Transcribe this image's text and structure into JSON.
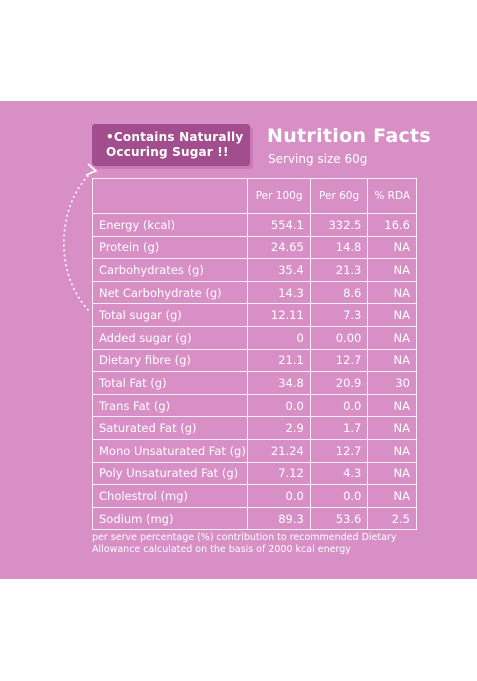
{
  "callout": {
    "line1": "•Contains Naturally",
    "line2": "Occuring Sugar !!"
  },
  "header": {
    "title": "Nutrition Facts",
    "serving": "Serving size 60g"
  },
  "table": {
    "columns": [
      "",
      "Per 100g",
      "Per 60g",
      "% RDA"
    ],
    "rows": [
      {
        "name": "Energy (kcal)",
        "per100": "554.1",
        "per60": "332.5",
        "rda": "16.6"
      },
      {
        "name": "Protein (g)",
        "per100": "24.65",
        "per60": "14.8",
        "rda": "NA"
      },
      {
        "name": "Carbohydrates (g)",
        "per100": "35.4",
        "per60": "21.3",
        "rda": "NA"
      },
      {
        "name": "Net Carbohydrate (g)",
        "per100": "14.3",
        "per60": "8.6",
        "rda": "NA"
      },
      {
        "name": "Total sugar (g)",
        "per100": "12.11",
        "per60": "7.3",
        "rda": "NA"
      },
      {
        "name": "Added sugar (g)",
        "per100": "0",
        "per60": "0.00",
        "rda": "NA"
      },
      {
        "name": "Dietary fibre (g)",
        "per100": "21.1",
        "per60": "12.7",
        "rda": "NA"
      },
      {
        "name": "Total Fat (g)",
        "per100": "34.8",
        "per60": "20.9",
        "rda": "30"
      },
      {
        "name": "Trans Fat (g)",
        "per100": "0.0",
        "per60": "0.0",
        "rda": "NA"
      },
      {
        "name": "Saturated Fat (g)",
        "per100": "2.9",
        "per60": "1.7",
        "rda": "NA"
      },
      {
        "name": "Mono Unsaturated Fat (g)",
        "per100": "21.24",
        "per60": "12.7",
        "rda": "NA"
      },
      {
        "name": "Poly Unsaturated Fat (g)",
        "per100": "7.12",
        "per60": "4.3",
        "rda": "NA"
      },
      {
        "name": "Cholestrol (mg)",
        "per100": "0.0",
        "per60": "0.0",
        "rda": "NA"
      },
      {
        "name": "Sodium (mg)",
        "per100": "89.3",
        "per60": "53.6",
        "rda": "2.5"
      }
    ]
  },
  "footer": {
    "line1": "per serve percentage (%) contribution to recommended Dietary",
    "line2": "Allowance calculated on the basis of 2000 kcal energy"
  },
  "colors": {
    "panel": "#d78fc6",
    "callout": "#a24d8d",
    "text": "#ffffff"
  }
}
